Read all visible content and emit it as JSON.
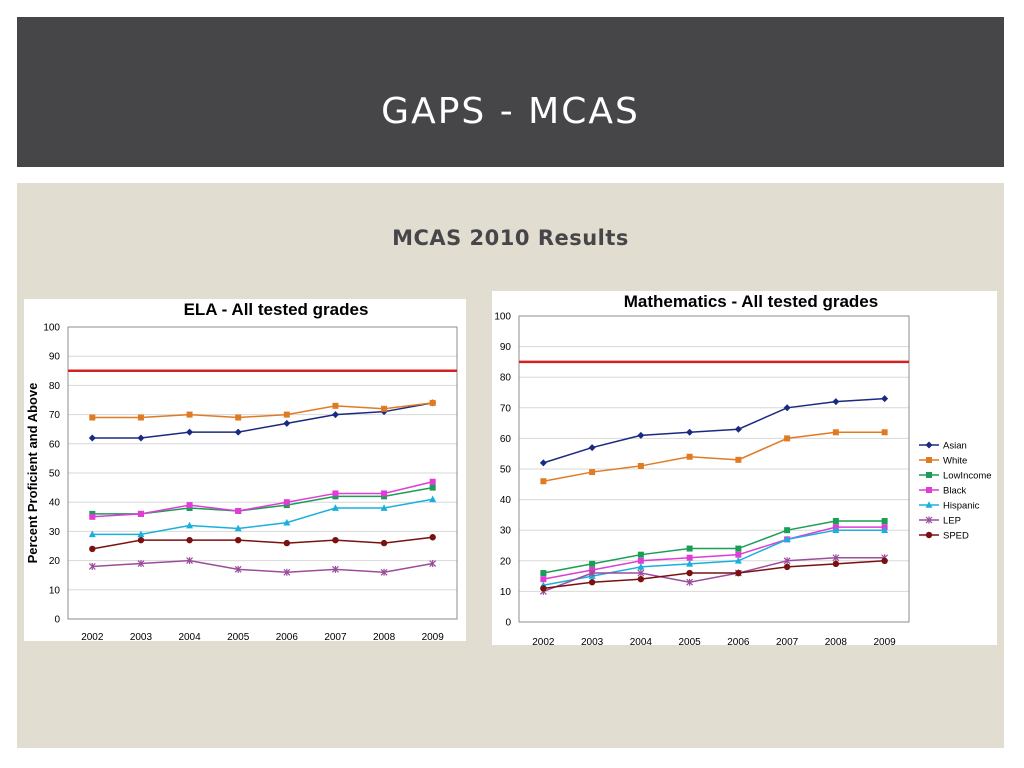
{
  "slide": {
    "title": "GAPS - MCAS",
    "subtitle": "MCAS 2010 Results"
  },
  "colors": {
    "title_bar": "#464649",
    "content_bg": "#e2ddd1",
    "target_line": "#d42020"
  },
  "chart_data": [
    {
      "type": "line",
      "title": "ELA - All tested grades",
      "xlabel": "",
      "ylabel": "Percent Proficient and Above",
      "ylim": [
        0,
        100
      ],
      "yticks": [
        0,
        10,
        20,
        30,
        40,
        50,
        60,
        70,
        80,
        90,
        100
      ],
      "categories": [
        "2002",
        "2003",
        "2004",
        "2005",
        "2006",
        "2007",
        "2008",
        "2009"
      ],
      "grid": "horizontal",
      "legend": "none",
      "reference_line": 85,
      "series": [
        {
          "key": "asian",
          "color": "#1a2a80",
          "marker": "diamond",
          "values": [
            62,
            62,
            64,
            64,
            67,
            70,
            71,
            74
          ]
        },
        {
          "key": "white",
          "color": "#e07b24",
          "marker": "square",
          "values": [
            69,
            69,
            70,
            69,
            70,
            73,
            72,
            74
          ]
        },
        {
          "key": "lowincome",
          "color": "#1a9e55",
          "marker": "square",
          "values": [
            36,
            36,
            38,
            37,
            39,
            42,
            42,
            45
          ]
        },
        {
          "key": "black",
          "color": "#e03cd6",
          "marker": "square",
          "values": [
            35,
            36,
            39,
            37,
            40,
            43,
            43,
            47
          ]
        },
        {
          "key": "hispanic",
          "color": "#1ab0de",
          "marker": "triangle",
          "values": [
            29,
            29,
            32,
            31,
            33,
            38,
            38,
            41
          ]
        },
        {
          "key": "lep",
          "color": "#9b4d9b",
          "marker": "star",
          "values": [
            18,
            19,
            20,
            17,
            16,
            17,
            16,
            19
          ]
        },
        {
          "key": "sped",
          "color": "#7a1010",
          "marker": "circle",
          "values": [
            24,
            27,
            27,
            27,
            26,
            27,
            26,
            28
          ]
        }
      ]
    },
    {
      "type": "line",
      "title": "Mathematics - All tested grades",
      "xlabel": "",
      "ylabel": "",
      "ylim": [
        0,
        100
      ],
      "yticks": [
        0,
        10,
        20,
        30,
        40,
        50,
        60,
        70,
        80,
        90,
        100
      ],
      "categories": [
        "2002",
        "2003",
        "2004",
        "2005",
        "2006",
        "2007",
        "2008",
        "2009"
      ],
      "grid": "horizontal",
      "legend": "right",
      "reference_line": 85,
      "series": [
        {
          "name": "Asian",
          "color": "#1a2a80",
          "marker": "diamond",
          "values": [
            52,
            57,
            61,
            62,
            63,
            70,
            72,
            73
          ]
        },
        {
          "name": "White",
          "color": "#e07b24",
          "marker": "square",
          "values": [
            46,
            49,
            51,
            54,
            53,
            60,
            62,
            62
          ]
        },
        {
          "name": "LowIncome",
          "color": "#1a9e55",
          "marker": "square",
          "values": [
            16,
            19,
            22,
            24,
            24,
            30,
            33,
            33
          ]
        },
        {
          "name": "Black",
          "color": "#e03cd6",
          "marker": "square",
          "values": [
            14,
            17,
            20,
            21,
            22,
            27,
            31,
            31
          ]
        },
        {
          "name": "Hispanic",
          "color": "#1ab0de",
          "marker": "triangle",
          "values": [
            12,
            15,
            18,
            19,
            20,
            27,
            30,
            30
          ]
        },
        {
          "name": "LEP",
          "color": "#9b4d9b",
          "marker": "star",
          "values": [
            10,
            16,
            16,
            13,
            16,
            20,
            21,
            21
          ]
        },
        {
          "name": "SPED",
          "color": "#7a1010",
          "marker": "circle",
          "values": [
            11,
            13,
            14,
            16,
            16,
            18,
            19,
            20
          ]
        }
      ]
    }
  ]
}
